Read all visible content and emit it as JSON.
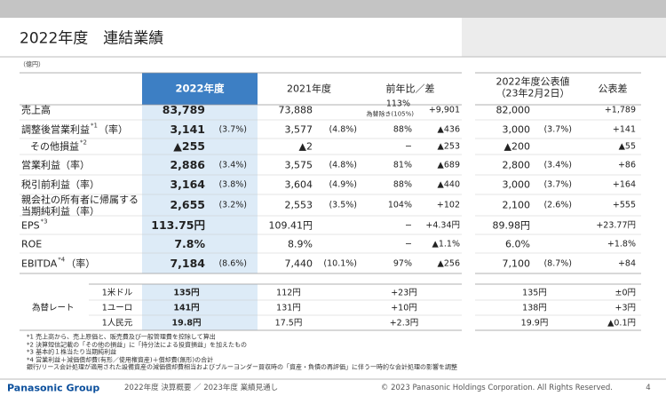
{
  "header": {
    "title": "2022年度　連結業績",
    "unit": "（億円）"
  },
  "table": {
    "columns": {
      "y2022": "2022年度",
      "y2021": "2021年度",
      "yoy": "前年比／差",
      "forecast": "2022年度公表値",
      "forecast_date": "（23年2月2日）",
      "forecast_diff": "公表差"
    },
    "rows": [
      {
        "label": "売上高",
        "v2022": "83,789",
        "v2021": "73,888",
        "yoy": "113%",
        "yoy_note": "為替除き(105%)",
        "diff": "+9,901",
        "fv": "82,000",
        "fdiff": "+1,789"
      },
      {
        "label": "調整後営業利益",
        "label_sup": "*1",
        "label_suffix": "（率）",
        "v2022": "3,141",
        "p2022": "(3.7%)",
        "v2021": "3,577",
        "p2021": "(4.8%)",
        "yoy": "88%",
        "diff": "▲436",
        "fv": "3,000",
        "fp": "(3.7%)",
        "fdiff": "+141"
      },
      {
        "label": "その他損益",
        "label_sup": "*2",
        "v2022": "▲255",
        "v2021": "▲2",
        "yoy": "−",
        "diff": "▲253",
        "fv": "▲200",
        "fdiff": "▲55"
      },
      {
        "label": "営業利益（率）",
        "v2022": "2,886",
        "p2022": "(3.4%)",
        "v2021": "3,575",
        "p2021": "(4.8%)",
        "yoy": "81%",
        "diff": "▲689",
        "fv": "2,800",
        "fp": "(3.4%)",
        "fdiff": "+86"
      },
      {
        "label": "税引前利益（率）",
        "v2022": "3,164",
        "p2022": "(3.8%)",
        "v2021": "3,604",
        "p2021": "(4.9%)",
        "yoy": "88%",
        "diff": "▲440",
        "fv": "3,000",
        "fp": "(3.7%)",
        "fdiff": "+164"
      },
      {
        "label": "親会社の所有者に帰属する",
        "label_line2": "当期純利益（率）",
        "v2022": "2,655",
        "p2022": "(3.2%)",
        "v2021": "2,553",
        "p2021": "(3.5%)",
        "yoy": "104%",
        "diff": "+102",
        "fv": "2,100",
        "fp": "(2.6%)",
        "fdiff": "+555"
      },
      {
        "label": "EPS",
        "label_sup": "*3",
        "v2022": "113.75円",
        "v2021": "109.41円",
        "yoy": "−",
        "diff": "+4.34円",
        "fv": "89.98円",
        "fdiff": "+23.77円"
      },
      {
        "label": "ROE",
        "v2022": "7.8%",
        "v2021": "8.9%",
        "yoy": "−",
        "diff": "▲1.1%",
        "fv": "6.0%",
        "fdiff": "+1.8%"
      },
      {
        "label": "EBITDA",
        "label_sup": "*4",
        "label_suffix": "（率）",
        "v2022": "7,184",
        "p2022": "(8.6%)",
        "v2021": "7,440",
        "p2021": "(10.1%)",
        "yoy": "97%",
        "diff": "▲256",
        "fv": "7,100",
        "fp": "(8.7%)",
        "fdiff": "+84"
      }
    ]
  },
  "fx": {
    "label": "為替レート",
    "rows": [
      {
        "currency": "1米ドル",
        "v2022": "135円",
        "v2021": "112円",
        "diff": "+23円",
        "fv": "135円",
        "fdiff": "±0円"
      },
      {
        "currency": "1ユーロ",
        "v2022": "141円",
        "v2021": "131円",
        "diff": "+10円",
        "fv": "138円",
        "fdiff": "+3円"
      },
      {
        "currency": "1人民元",
        "v2022": "19.8円",
        "v2021": "17.5円",
        "diff": "+2.3円",
        "fv": "19.9円",
        "fdiff": "▲0.1円"
      }
    ]
  },
  "footnotes": [
    "*1  売上高から、売上原価と、販売費及び一般管理費を控除して算出",
    "*2  決算短信記載の「その他の損益」に「持分法による投資損益」を加えたもの",
    "*3  基本的１株当たり当期純利益",
    "*4  営業利益＋減価償却費(有形／使用権資産)＋償却費(無形)の合計",
    "     銀行/リース会計処理が適用された設備資産の減価償却費相当およびブルーヨンダー買収時の「資産・負債の再評価」に伴う一時的な会計処理の影響を調整"
  ],
  "footer": {
    "brand": "Panasonic Group",
    "subtitle": "2022年度 決算概要 ／ 2023年度 業績見通し",
    "copyright": "© 2023 Panasonic Holdings Corporation. All Rights Reserved.",
    "page": "4"
  }
}
